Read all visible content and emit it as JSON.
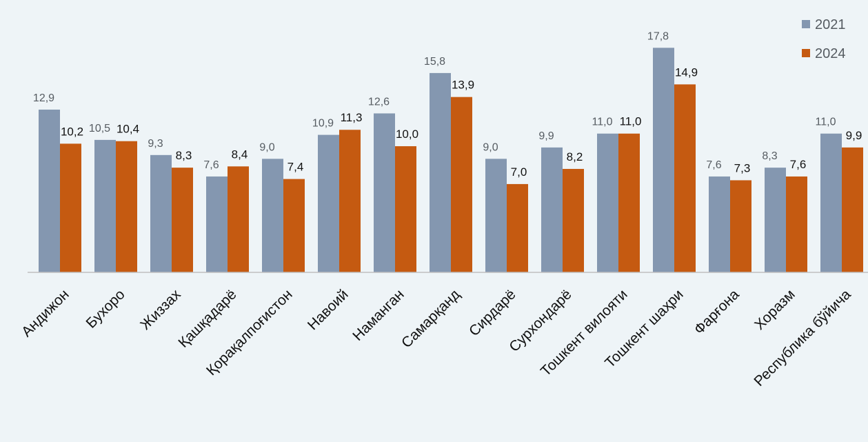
{
  "chart_data": {
    "type": "bar",
    "categories": [
      "Андижон",
      "Бухоро",
      "Жиззах",
      "Қашқадарё",
      "Қорақалпоғистон",
      "Навоий",
      "Наманган",
      "Самарқанд",
      "Сирдарё",
      "Сурхондарё",
      "Тошкент вилояти",
      "Тошкент шаҳри",
      "Фарғона",
      "Хоразм",
      "Республика бўйича"
    ],
    "series": [
      {
        "name": "2021",
        "color": "#8497b0",
        "values": [
          12.9,
          10.5,
          9.3,
          7.6,
          9.0,
          10.9,
          12.6,
          15.8,
          9.0,
          9.9,
          11.0,
          17.8,
          7.6,
          8.3,
          11.0
        ],
        "labels": [
          "12,9",
          "10,5",
          "9,3",
          "7,6",
          "9,0",
          "10,9",
          "12,6",
          "15,8",
          "9,0",
          "9,9",
          "11,0",
          "17,8",
          "7,6",
          "8,3",
          "11,0"
        ]
      },
      {
        "name": "2024",
        "color": "#c55a11",
        "values": [
          10.2,
          10.4,
          8.3,
          8.4,
          7.4,
          11.3,
          10.0,
          13.9,
          7.0,
          8.2,
          11.0,
          14.9,
          7.3,
          7.6,
          9.9
        ],
        "labels": [
          "10,2",
          "10,4",
          "8,3",
          "8,4",
          "7,4",
          "11,3",
          "10,0",
          "13,9",
          "7,0",
          "8,2",
          "11,0",
          "14,9",
          "7,3",
          "7,6",
          "9,9"
        ]
      }
    ],
    "title": "",
    "xlabel": "",
    "ylabel": "",
    "ylim": [
      0,
      18.2
    ],
    "grid": false,
    "legend_position": "top-right",
    "axis_color": "#bfbfbf"
  }
}
